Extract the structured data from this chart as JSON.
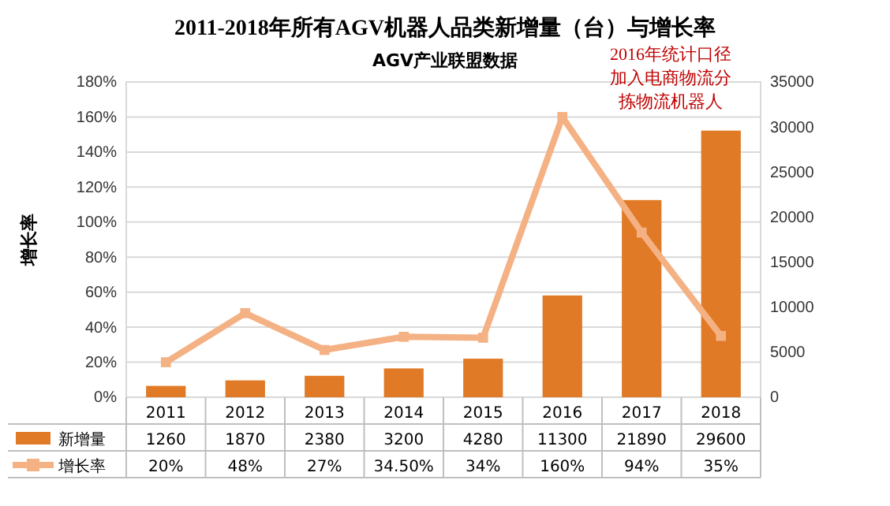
{
  "chart_data": {
    "type": "bar",
    "title": "2011-2018年所有AGV机器人品类新增量（台）与增长率",
    "subtitle": "AGV产业联盟数据",
    "ylabel": "增长率",
    "annotations": [
      "2016年统计口径加入电商物流分拣物流机器人"
    ],
    "categories": [
      "2011",
      "2012",
      "2013",
      "2014",
      "2015",
      "2016",
      "2017",
      "2018"
    ],
    "series": [
      {
        "name": "新增量",
        "axis": "y2",
        "color": "#e07a26",
        "values": [
          1260,
          1870,
          2380,
          3200,
          4280,
          11300,
          21890,
          29600
        ],
        "value_labels": [
          "1260",
          "1870",
          "2380",
          "3200",
          "4280",
          "11300",
          "21890",
          "29600"
        ]
      },
      {
        "name": "增长率",
        "type": "line",
        "color": "#f4b183",
        "marker": "square",
        "values": [
          20,
          48,
          27,
          34.5,
          34,
          160,
          94,
          35
        ],
        "value_labels": [
          "20%",
          "48%",
          "27%",
          "34.50%",
          "34%",
          "160%",
          "94%",
          "35%"
        ]
      }
    ],
    "ylim": [
      0,
      180
    ],
    "yticks": [
      {
        "value": 0,
        "label": "0%"
      },
      {
        "value": 20,
        "label": "20%"
      },
      {
        "value": 40,
        "label": "40%"
      },
      {
        "value": 60,
        "label": "60%"
      },
      {
        "value": 80,
        "label": "80%"
      },
      {
        "value": 100,
        "label": "100%"
      },
      {
        "value": 120,
        "label": "120%"
      },
      {
        "value": 140,
        "label": "140%"
      },
      {
        "value": 160,
        "label": "160%"
      },
      {
        "value": 180,
        "label": "180%"
      }
    ],
    "y2lim": [
      0,
      35000
    ],
    "y2ticks": [
      0,
      5000,
      10000,
      15000,
      20000,
      25000,
      30000,
      35000
    ],
    "grid": "y",
    "legend": "bottom"
  }
}
